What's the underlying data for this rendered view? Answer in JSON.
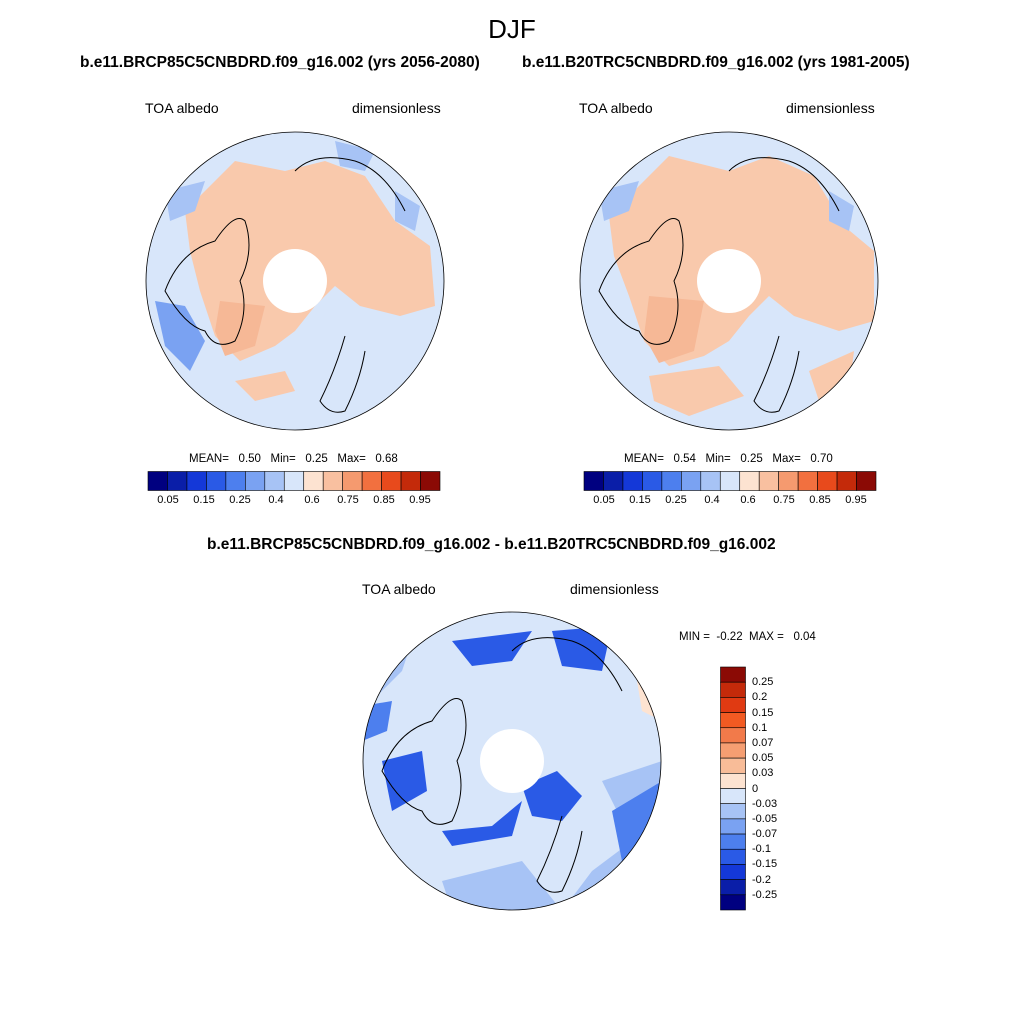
{
  "figure": {
    "title": "DJF"
  },
  "panels": [
    {
      "title": "b.e11.BRCP85C5CNBDRD.f09_g16.002 (yrs 2056-2080)",
      "left_label": "TOA albedo",
      "right_label": "dimensionless",
      "stats": {
        "mean_label": "MEAN=",
        "mean": "0.50",
        "min_label": "Min=",
        "min": "0.25",
        "max_label": "Max=",
        "max": "0.68"
      }
    },
    {
      "title": "b.e11.B20TRC5CNBDRD.f09_g16.002 (yrs 1981-2005)",
      "left_label": "TOA albedo",
      "right_label": "dimensionless",
      "stats": {
        "mean_label": "MEAN=",
        "mean": "0.54",
        "min_label": "Min=",
        "min": "0.25",
        "max_label": "Max=",
        "max": "0.70"
      }
    },
    {
      "title": "b.e11.BRCP85C5CNBDRD.f09_g16.002 - b.e11.B20TRC5CNBDRD.f09_g16.002",
      "left_label": "TOA albedo",
      "right_label": "dimensionless",
      "stats": {
        "min_label": "MIN =",
        "min": "-0.22",
        "max_label": "MAX =",
        "max": "0.04"
      }
    }
  ],
  "colorbar_abs": {
    "colors": [
      "#000080",
      "#0a1ea8",
      "#1438d8",
      "#2a5ae6",
      "#4d7fee",
      "#7aa2f2",
      "#a7c3f5",
      "#d8e6fa",
      "#fde3d1",
      "#f9c0a0",
      "#f59a6f",
      "#f2703f",
      "#e84a1c",
      "#c42a0a",
      "#8b0a05"
    ],
    "tick_labels": [
      "0.05",
      "0.15",
      "0.25",
      "0.4",
      "0.6",
      "0.75",
      "0.85",
      "0.95"
    ]
  },
  "colorbar_diff": {
    "colors": [
      "#8b0a05",
      "#c42a0a",
      "#e03a12",
      "#f25a22",
      "#f27a4a",
      "#f59e72",
      "#f8bc98",
      "#fde3d1",
      "#d8e6fa",
      "#a7c3f5",
      "#7aa2f2",
      "#4d7fee",
      "#2a5ae6",
      "#1438d8",
      "#0a1ea8",
      "#000080"
    ],
    "tick_labels": [
      "0.25",
      "0.2",
      "0.15",
      "0.1",
      "0.07",
      "0.05",
      "0.03",
      "0",
      "-0.03",
      "-0.05",
      "-0.07",
      "-0.1",
      "-0.15",
      "-0.2",
      "-0.25"
    ]
  }
}
